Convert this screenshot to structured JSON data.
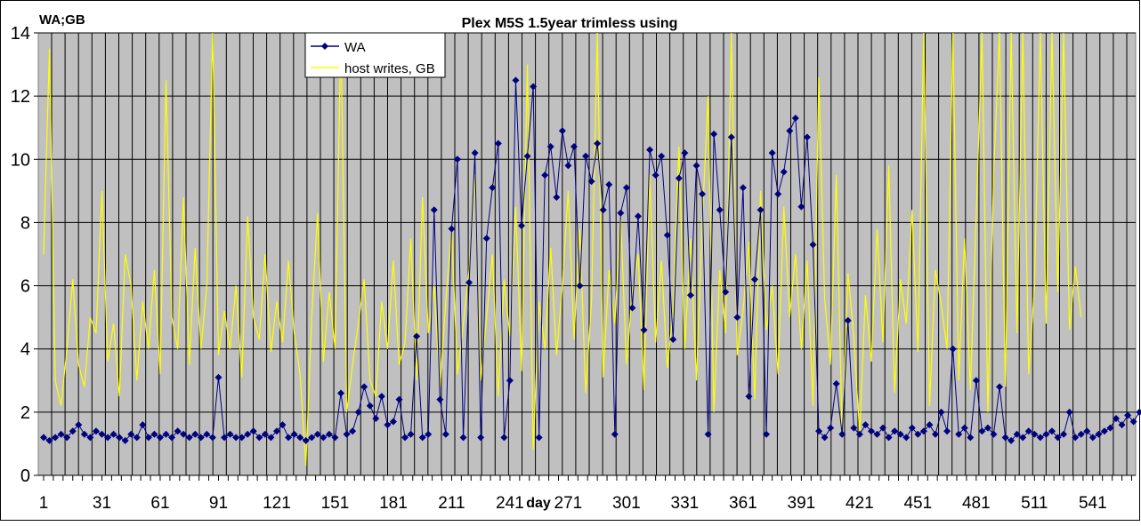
{
  "chart_data": {
    "type": "line",
    "title": "Plex M5S 1.5year trimless using",
    "ylabel": "WA;GB",
    "xlabel": "day",
    "ylim": [
      0,
      14
    ],
    "yticks": [
      0,
      2,
      4,
      6,
      8,
      10,
      12,
      14
    ],
    "xlim": [
      1,
      565
    ],
    "xticks": [
      "1",
      "31",
      "61",
      "91",
      "121",
      "151",
      "181",
      "211",
      "241",
      "271",
      "301",
      "331",
      "361",
      "391",
      "421",
      "451",
      "481",
      "511",
      "541"
    ],
    "grid": true,
    "legend_position": "top-left",
    "colors": {
      "plot_bg": "#c0c0c0",
      "wa": "#000080",
      "host": "#ffff00"
    },
    "x_start": 1,
    "x_step": 3,
    "series": [
      {
        "name": "WA",
        "marker": "diamond",
        "values": [
          1.2,
          1.1,
          1.2,
          1.3,
          1.2,
          1.4,
          1.6,
          1.3,
          1.2,
          1.4,
          1.3,
          1.2,
          1.3,
          1.2,
          1.1,
          1.3,
          1.2,
          1.6,
          1.2,
          1.3,
          1.2,
          1.3,
          1.2,
          1.4,
          1.3,
          1.2,
          1.3,
          1.2,
          1.3,
          1.2,
          3.1,
          1.2,
          1.3,
          1.2,
          1.2,
          1.3,
          1.4,
          1.2,
          1.3,
          1.2,
          1.4,
          1.6,
          1.2,
          1.3,
          1.2,
          1.1,
          1.2,
          1.3,
          1.2,
          1.3,
          1.2,
          2.6,
          1.3,
          1.4,
          2.0,
          2.8,
          2.2,
          1.8,
          2.5,
          1.6,
          1.7,
          2.4,
          1.2,
          1.3,
          4.4,
          1.2,
          1.3,
          8.4,
          2.4,
          1.3,
          7.8,
          10.0,
          1.2,
          6.1,
          10.2,
          1.2,
          7.5,
          9.1,
          10.5,
          1.2,
          3.0,
          12.5,
          7.9,
          10.1,
          12.3,
          1.2,
          9.5,
          10.4,
          8.8,
          10.9,
          9.8,
          10.4,
          6.0,
          10.1,
          9.3,
          10.5,
          8.4,
          9.2,
          1.3,
          8.3,
          9.1,
          5.3,
          8.2,
          4.6,
          10.3,
          9.5,
          10.1,
          7.6,
          4.3,
          9.4,
          10.2,
          5.7,
          9.8,
          8.9,
          1.3,
          10.8,
          8.4,
          5.8,
          10.7,
          5.0,
          9.1,
          2.5,
          6.2,
          8.4,
          1.3,
          10.2,
          8.9,
          9.6,
          10.9,
          11.3,
          8.5,
          10.7,
          7.3,
          1.4,
          1.2,
          1.5,
          2.9,
          1.3,
          4.9,
          1.5,
          1.3,
          1.6,
          1.4,
          1.3,
          1.5,
          1.2,
          1.4,
          1.3,
          1.2,
          1.5,
          1.3,
          1.4,
          1.6,
          1.3,
          2.0,
          1.4,
          4.0,
          1.3,
          1.5,
          1.2,
          3.0,
          1.4,
          1.5,
          1.3,
          2.8,
          1.2,
          1.1,
          1.3,
          1.2,
          1.4,
          1.3,
          1.2,
          1.3,
          1.4,
          1.2,
          1.3,
          2.0,
          1.2,
          1.3,
          1.4,
          1.2,
          1.3,
          1.4,
          1.5,
          1.8,
          1.6,
          1.9,
          1.7,
          2.0
        ]
      },
      {
        "name": "host writes, GB",
        "marker": "none",
        "values": [
          7,
          13.5,
          3,
          2.2,
          4,
          6.2,
          3.5,
          2.8,
          5,
          4.5,
          9,
          3.6,
          4.8,
          2.5,
          7,
          6,
          3,
          5.5,
          4,
          6.5,
          3.2,
          12.5,
          5,
          4,
          8.8,
          3.5,
          7.2,
          4,
          6,
          14,
          3.8,
          5.2,
          4,
          6,
          3.1,
          8.2,
          5,
          4.3,
          7,
          3.9,
          5.5,
          4.2,
          6.8,
          4.5,
          3.2,
          0.3,
          5,
          8.3,
          3.6,
          5.8,
          4,
          14,
          2,
          3.5,
          4.8,
          6.2,
          3,
          2.5,
          5.5,
          4,
          6.8,
          3.5,
          4.2,
          7.5,
          3,
          8.8,
          4.5,
          6,
          2.8,
          5.5,
          7.8,
          3.2,
          4.8,
          6.5,
          9.5,
          3,
          5,
          7,
          2.5,
          6.2,
          4.4,
          8.5,
          3.3,
          13,
          0.8,
          5.5,
          4,
          7.2,
          3.8,
          6,
          9,
          4.3,
          7.8,
          2.6,
          5.5,
          14,
          3.1,
          6.5,
          4.8,
          8.2,
          3.5,
          5.8,
          7,
          2.7,
          9.5,
          4.2,
          6.8,
          3.4,
          5.2,
          10.4,
          4,
          7.5,
          3,
          8,
          12,
          2,
          6.5,
          4.5,
          14,
          3.8,
          5.2,
          7.4,
          2.4,
          9,
          4.6,
          6,
          3.2,
          8.5,
          5,
          7,
          4,
          6.8,
          2.2,
          12.6,
          5.6,
          3.5,
          9.5,
          1.2,
          6.4,
          4.4,
          1.3,
          5.7,
          3.6,
          7.8,
          4.2,
          9.8,
          2.6,
          6.2,
          4.8,
          8.4,
          3.9,
          14,
          2.2,
          6.5,
          5.4,
          4,
          14,
          3,
          7.5,
          2.7,
          8.2,
          14,
          2,
          9.6,
          14,
          2.8,
          14,
          4.5,
          14,
          3.2,
          6,
          14,
          4.8,
          14,
          5.8,
          14,
          4.6,
          6.6,
          5
        ]
      }
    ]
  }
}
